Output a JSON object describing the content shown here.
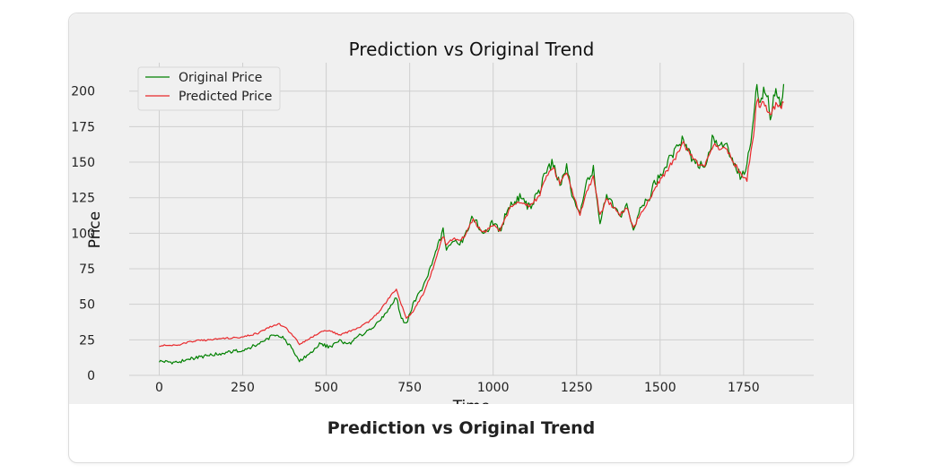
{
  "caption": "Prediction vs Original Trend",
  "chart_data": {
    "type": "line",
    "title": "Prediction vs Original Trend",
    "xlabel": "Time",
    "ylabel": "Price",
    "xlim": [
      -90,
      1960
    ],
    "ylim": [
      0,
      220
    ],
    "xticks": [
      0,
      250,
      500,
      750,
      1000,
      1250,
      1500,
      1750
    ],
    "yticks": [
      0,
      25,
      50,
      75,
      100,
      125,
      150,
      175,
      200
    ],
    "grid": true,
    "legend": "top-left",
    "series": [
      {
        "name": "Original Price",
        "color": "#008000",
        "x": [
          0,
          50,
          100,
          150,
          200,
          250,
          300,
          340,
          370,
          400,
          420,
          450,
          480,
          510,
          540,
          570,
          600,
          630,
          660,
          690,
          710,
          725,
          740,
          760,
          790,
          820,
          850,
          860,
          880,
          900,
          920,
          940,
          970,
          1000,
          1020,
          1050,
          1080,
          1110,
          1140,
          1160,
          1180,
          1200,
          1220,
          1240,
          1260,
          1280,
          1300,
          1320,
          1340,
          1360,
          1380,
          1400,
          1420,
          1440,
          1460,
          1490,
          1520,
          1550,
          1570,
          1590,
          1610,
          1630,
          1660,
          1680,
          1700,
          1720,
          1740,
          1760,
          1780,
          1790,
          1800,
          1810,
          1820,
          1830,
          1840,
          1850,
          1860,
          1870
        ],
        "values": [
          10,
          9,
          12,
          14,
          16,
          18,
          22,
          28,
          27,
          18,
          10,
          15,
          22,
          20,
          24,
          22,
          28,
          32,
          38,
          48,
          55,
          40,
          36,
          50,
          62,
          80,
          103,
          88,
          95,
          92,
          100,
          112,
          98,
          108,
          102,
          120,
          125,
          118,
          130,
          145,
          150,
          133,
          148,
          122,
          112,
          135,
          145,
          108,
          128,
          118,
          112,
          120,
          100,
          118,
          122,
          138,
          148,
          160,
          168,
          155,
          150,
          145,
          168,
          162,
          160,
          148,
          140,
          148,
          180,
          205,
          192,
          200,
          198,
          182,
          195,
          198,
          192,
          205
        ]
      },
      {
        "name": "Predicted Price",
        "color": "#e8282b",
        "x": [
          0,
          50,
          100,
          150,
          200,
          250,
          300,
          340,
          360,
          380,
          400,
          420,
          450,
          480,
          510,
          540,
          570,
          600,
          630,
          660,
          690,
          710,
          725,
          740,
          760,
          790,
          820,
          850,
          860,
          880,
          900,
          920,
          940,
          970,
          1000,
          1020,
          1050,
          1080,
          1110,
          1140,
          1160,
          1180,
          1200,
          1220,
          1240,
          1260,
          1280,
          1300,
          1320,
          1340,
          1360,
          1380,
          1400,
          1420,
          1440,
          1460,
          1490,
          1520,
          1550,
          1570,
          1590,
          1610,
          1630,
          1660,
          1680,
          1700,
          1720,
          1740,
          1760,
          1780,
          1790,
          1800,
          1810,
          1820,
          1830,
          1840,
          1850,
          1860,
          1870
        ],
        "values": [
          21,
          21,
          24,
          25,
          26,
          27,
          30,
          35,
          36,
          33,
          28,
          22,
          26,
          30,
          32,
          28,
          31,
          34,
          38,
          45,
          55,
          61,
          50,
          40,
          45,
          57,
          75,
          98,
          92,
          96,
          94,
          100,
          110,
          100,
          106,
          102,
          117,
          122,
          119,
          127,
          140,
          146,
          135,
          144,
          126,
          113,
          128,
          140,
          112,
          124,
          118,
          113,
          119,
          103,
          114,
          120,
          134,
          144,
          155,
          163,
          156,
          150,
          146,
          163,
          160,
          158,
          150,
          142,
          138,
          170,
          195,
          188,
          193,
          188,
          182,
          188,
          192,
          188,
          192
        ]
      }
    ]
  }
}
